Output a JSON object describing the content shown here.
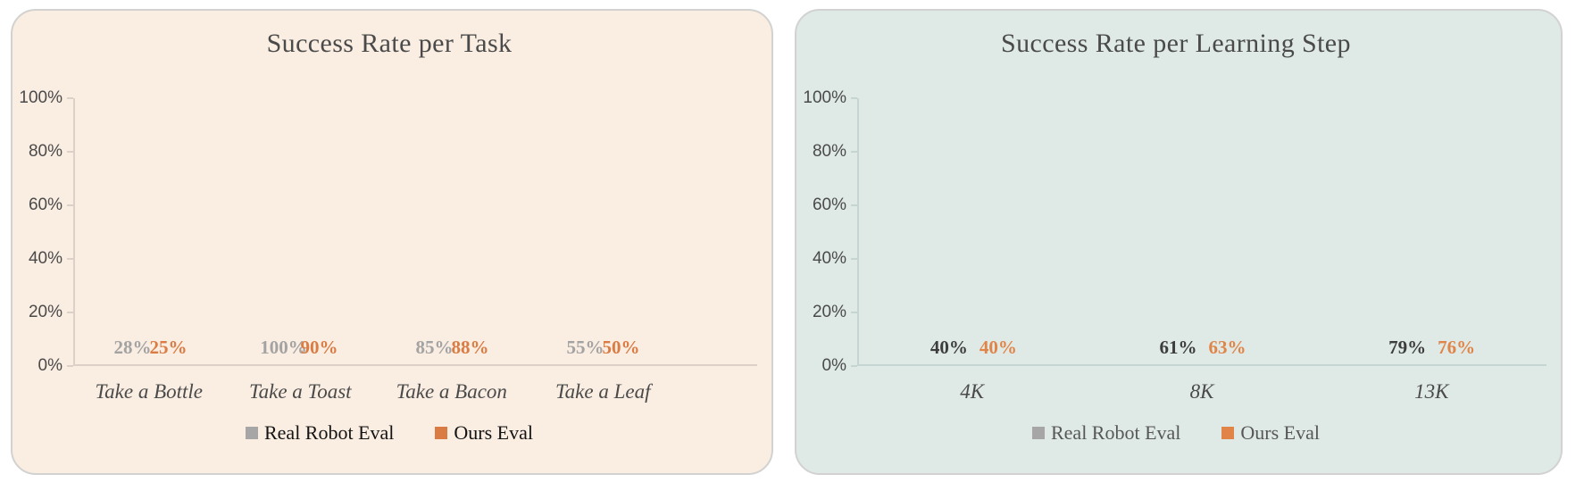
{
  "page": {
    "background": "#FFFFFF"
  },
  "chart_data": [
    {
      "type": "bar",
      "title": "Success Rate per Task",
      "categories": [
        "Take a Bottle",
        "Take a Toast",
        "Take a Bacon",
        "Take a Leaf"
      ],
      "series": [
        {
          "name": "Real Robot Eval",
          "values": [
            28,
            100,
            85,
            55
          ],
          "labels": [
            "28%",
            "100%",
            "85%",
            "55%"
          ],
          "color": "#A6A6A6",
          "label_color": "#A3A3A3"
        },
        {
          "name": "Ours Eval",
          "values": [
            25,
            90,
            88,
            50
          ],
          "labels": [
            "25%",
            "90%",
            "88%",
            "50%"
          ],
          "color": "#D97B42",
          "label_color": "#DA7C44"
        }
      ],
      "ylabel": "",
      "ylim": [
        0,
        100
      ],
      "y_ticks": [
        "0%",
        "20%",
        "40%",
        "60%",
        "80%",
        "100%"
      ],
      "grid": false,
      "legend_position": "bottom",
      "card_background": "#FAEDE2",
      "title_color": "#4A4A4A"
    },
    {
      "type": "bar",
      "title": "Success Rate per Learning Step",
      "categories": [
        "4K",
        "8K",
        "13K"
      ],
      "series": [
        {
          "name": "Real Robot Eval",
          "values": [
            40,
            61,
            79
          ],
          "labels": [
            "40%",
            "61%",
            "79%"
          ],
          "color": "#A6A6A6",
          "label_color": "#3D3D3D"
        },
        {
          "name": "Ours Eval",
          "values": [
            40,
            63,
            76
          ],
          "labels": [
            "40%",
            "63%",
            "76%"
          ],
          "color": "#E08448",
          "label_color": "#E08448"
        }
      ],
      "ylabel": "",
      "ylim": [
        0,
        100
      ],
      "y_ticks": [
        "0%",
        "20%",
        "40%",
        "60%",
        "80%",
        "100%"
      ],
      "grid": false,
      "legend_position": "bottom",
      "card_background": "#DFEAE7",
      "title_color": "#4A4A4A"
    }
  ]
}
